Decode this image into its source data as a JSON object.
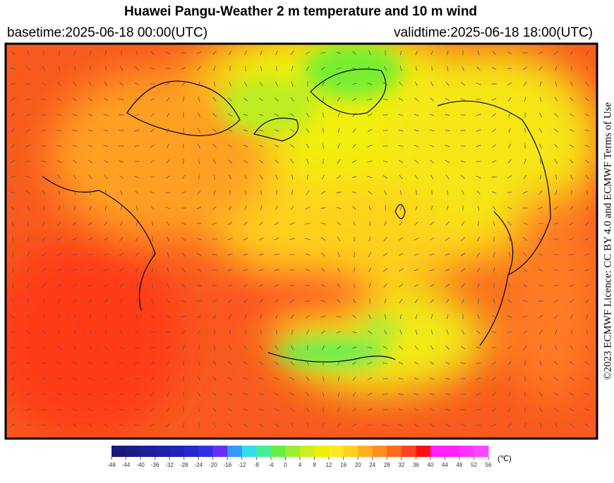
{
  "header": {
    "title": "Huawei Pangu-Weather  2 m temperature and 10 m wind",
    "basetime": "basetime:2025-06-18 00:00(UTC)",
    "validtime": "validtime:2025-06-18 18:00(UTC)"
  },
  "credit": "©2023 ECMWF Licence: CC BY 4.0 and ECMWF Terms of Use",
  "colorbar": {
    "unit": "(℃)",
    "ticks": [
      -48,
      -44,
      -40,
      -36,
      -32,
      -28,
      -24,
      -20,
      -16,
      -12,
      -8,
      -4,
      0,
      4,
      8,
      12,
      16,
      20,
      24,
      28,
      32,
      36,
      40,
      44,
      48,
      52,
      56
    ],
    "colors": [
      "#1a1a78",
      "#1c1c88",
      "#1e1e98",
      "#2020a8",
      "#2222b8",
      "#2828cc",
      "#3030e4",
      "#6a30f0",
      "#3399ff",
      "#33ddee",
      "#44ee99",
      "#66ee44",
      "#99ee33",
      "#ccee22",
      "#eeee00",
      "#ffe822",
      "#ffd020",
      "#ffb020",
      "#ff9020",
      "#ff6a20",
      "#ff4420",
      "#ff1010",
      "#ff22ff",
      "#ff22ff",
      "#ff33ff",
      "#ff44ff"
    ]
  }
}
